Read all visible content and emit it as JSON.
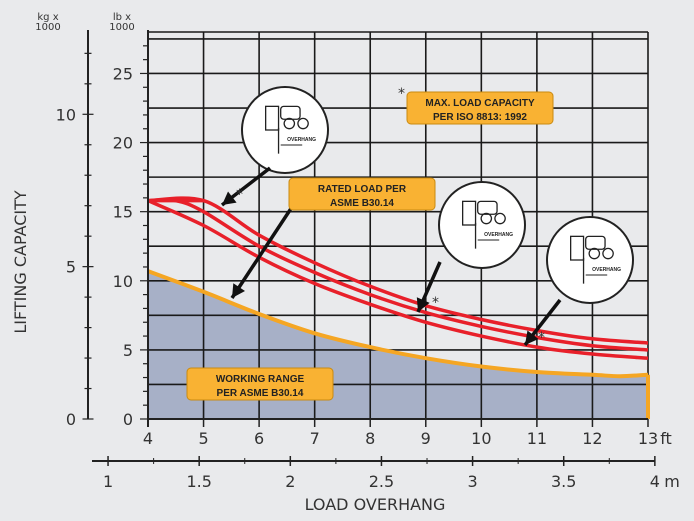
{
  "chart_data": {
    "type": "line",
    "xlabel": "LOAD OVERHANG",
    "ylabel": "LIFTING CAPACITY",
    "x_unit": "ft",
    "x2_unit": "m",
    "y_unit_left": [
      "kg x",
      "1000"
    ],
    "y_unit_right": [
      "lb x",
      "1000"
    ],
    "xlim": [
      4,
      13
    ],
    "ylim_lb": [
      0,
      28
    ],
    "x_ticks": [
      4,
      5,
      6,
      7,
      8,
      9,
      10,
      11,
      12,
      13
    ],
    "x2_ticks": [
      "1",
      "1.5",
      "2",
      "2.5",
      "3",
      "3.5",
      "4"
    ],
    "x2_tick_values_m": [
      1,
      1.5,
      2,
      2.5,
      3,
      3.5,
      4
    ],
    "y_ticks_lb": [
      0,
      5,
      10,
      15,
      20,
      25
    ],
    "y_ticks_kg": [
      0,
      5,
      10
    ],
    "series": [
      {
        "kind": "working-range",
        "x": [
          4,
          5,
          6,
          7,
          8,
          9,
          10,
          11,
          12,
          12.5,
          13
        ],
        "y": [
          10.7,
          9.2,
          7.6,
          6.2,
          5.2,
          4.4,
          3.8,
          3.4,
          3.2,
          3.1,
          3.2
        ]
      },
      {
        "kind": "rated-upper",
        "x": [
          4,
          5,
          6,
          7,
          8,
          9,
          10,
          11,
          12,
          13
        ],
        "y": [
          15.8,
          15.8,
          13.3,
          11.3,
          9.6,
          8.2,
          7.2,
          6.4,
          5.8,
          5.5
        ]
      },
      {
        "kind": "rated-middle",
        "x": [
          4,
          4.5,
          5,
          6,
          7,
          8,
          9,
          10,
          11,
          12,
          13
        ],
        "y": [
          15.8,
          15.8,
          15.0,
          12.5,
          10.6,
          9.0,
          7.7,
          6.7,
          5.9,
          5.3,
          5.0
        ]
      },
      {
        "kind": "rated-lower",
        "x": [
          4,
          5,
          6,
          7,
          8,
          9,
          10,
          11,
          12,
          13
        ],
        "y": [
          15.8,
          14.0,
          11.7,
          9.8,
          8.3,
          7.0,
          6.0,
          5.2,
          4.7,
          4.4
        ]
      }
    ],
    "callouts": {
      "max_load": [
        "MAX. LOAD CAPACITY",
        "PER ISO 8813: 1992"
      ],
      "rated_load": [
        "RATED LOAD PER",
        "ASME B30.14"
      ],
      "working_range": [
        "WORKING RANGE",
        "PER ASME B30.14"
      ],
      "overhang_label": "OVERHANG",
      "asterisk": "*"
    },
    "colors": {
      "rated": "#e8202a",
      "working_line": "#f5a623",
      "working_fill": "#a7b0c7",
      "callout_fill": "#f9b233",
      "grid": "#1a1a1a",
      "background": "#e9eaec"
    },
    "grid": true
  }
}
